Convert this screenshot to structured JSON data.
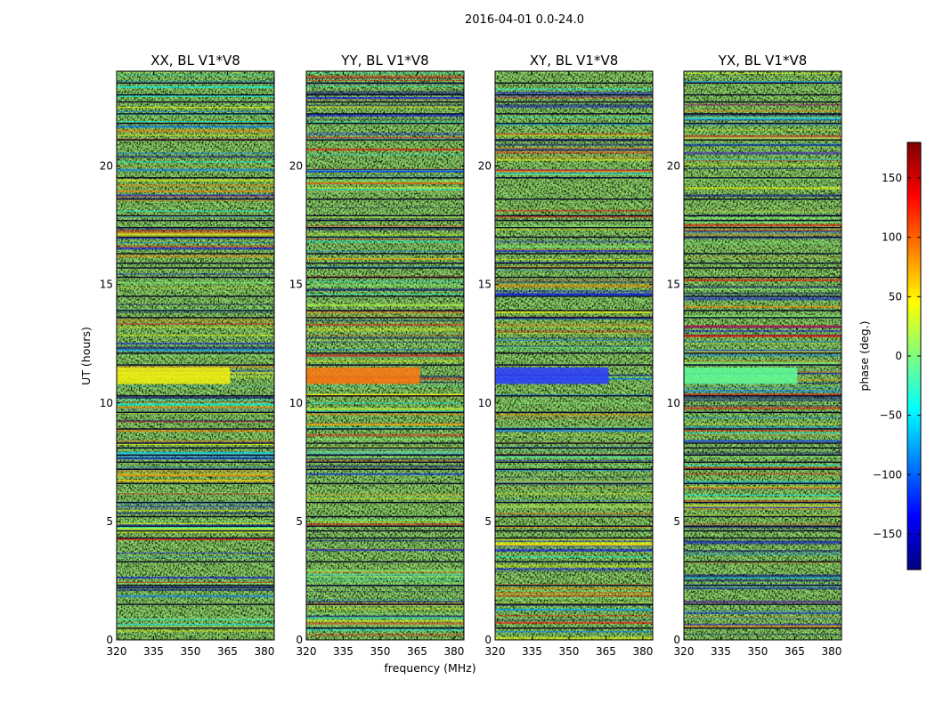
{
  "chart_data": {
    "type": "heatmap",
    "suptitle": "2016-04-01 0.0-24.0",
    "xlabel": "frequency (MHz)",
    "ylabel": "UT (hours)",
    "xlim": [
      320,
      384
    ],
    "ylim": [
      0,
      24
    ],
    "xticks": [
      "320",
      "335",
      "350",
      "365",
      "380"
    ],
    "yticks": [
      "0",
      "5",
      "10",
      "15",
      "20"
    ],
    "panels": [
      {
        "title": "XX, BL V1*V8",
        "highlight_band": [
          10.8,
          11.5
        ],
        "highlight_color": "#f2f010"
      },
      {
        "title": "YY, BL V1*V8",
        "highlight_band": [
          10.8,
          11.5
        ],
        "highlight_color": "#ff7a10"
      },
      {
        "title": "XY, BL V1*V8",
        "highlight_band": [
          10.8,
          11.5
        ],
        "highlight_color": "#2a3cff"
      },
      {
        "title": "YX, BL V1*V8",
        "highlight_band": [
          10.8,
          11.5
        ],
        "highlight_color": "#5fff9a"
      }
    ],
    "colorbar": {
      "label": "phase (deg.)",
      "range": [
        -180,
        180
      ],
      "ticks": [
        "150",
        "100",
        "50",
        "0",
        "−50",
        "−100",
        "−150"
      ],
      "tick_values": [
        150,
        100,
        50,
        0,
        -50,
        -100,
        -150
      ],
      "colormap": "jet"
    },
    "flagged_rows_ut": [
      0.5,
      1.5,
      2.3,
      3.3,
      4.6,
      4.3,
      4.8,
      5.2,
      5.8,
      6.6,
      7.2,
      7.5,
      7.8,
      8.1,
      8.3,
      8.9,
      9.6,
      10.3,
      11.6,
      12.1,
      13.6,
      13.9,
      14.5,
      15.3,
      15.7,
      15.9,
      16.3,
      17.0,
      17.4,
      17.7,
      17.9,
      18.6,
      19.5,
      21.1,
      21.8,
      22.2,
      22.7,
      23.0,
      23.5
    ]
  }
}
